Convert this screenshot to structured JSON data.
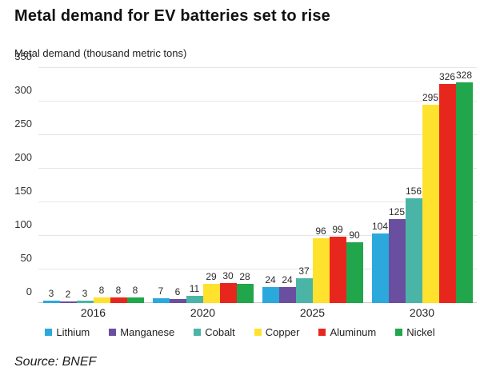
{
  "title": "Metal demand for EV batteries set to rise",
  "source": "Source: BNEF",
  "chart_data": {
    "type": "bar",
    "title": "Metal demand for EV batteries set to rise",
    "ylabel": "Metal demand (thousand metric tons)",
    "xlabel": "",
    "categories": [
      "2016",
      "2020",
      "2025",
      "2030"
    ],
    "series": [
      {
        "name": "Lithium",
        "color": "#2BA9DD",
        "values": [
          3,
          7,
          24,
          104
        ]
      },
      {
        "name": "Manganese",
        "color": "#6A4EA0",
        "values": [
          2,
          6,
          24,
          125
        ]
      },
      {
        "name": "Cobalt",
        "color": "#4AB5A6",
        "values": [
          3,
          11,
          37,
          156
        ]
      },
      {
        "name": "Copper",
        "color": "#FFE22E",
        "values": [
          8,
          29,
          96,
          295
        ]
      },
      {
        "name": "Aluminum",
        "color": "#E7271D",
        "values": [
          8,
          30,
          99,
          326
        ]
      },
      {
        "name": "Nickel",
        "color": "#21A64B",
        "values": [
          8,
          28,
          90,
          328
        ]
      }
    ],
    "ylim": [
      0,
      350
    ],
    "yticks": [
      0,
      50,
      100,
      150,
      200,
      250,
      300,
      350
    ],
    "grid": true,
    "bar_labels": true,
    "legend_position": "bottom"
  }
}
